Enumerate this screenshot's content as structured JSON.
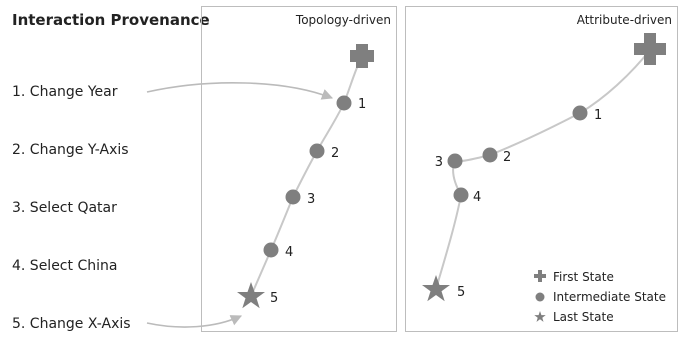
{
  "title": "Interaction Provenance",
  "steps": [
    "1. Change Year",
    "2. Change Y-Axis",
    "3. Select Qatar",
    "4. Select China",
    "5. Change X-Axis"
  ],
  "panels": [
    {
      "title": "Topology-driven",
      "node_labels": [
        "1",
        "2",
        "3",
        "4",
        "5"
      ]
    },
    {
      "title": "Attribute-driven",
      "node_labels": [
        "1",
        "2",
        "3",
        "4",
        "5"
      ]
    }
  ],
  "legend": {
    "first": "First State",
    "intermediate": "Intermediate State",
    "last": "Last State"
  },
  "colors": {
    "node": "#7f7f7f",
    "edge": "#c8c8c8",
    "panel_border": "#bdbdbd",
    "arrow": "#bbbbbb"
  },
  "icons": {
    "first": "plus-icon",
    "intermediate": "circle-icon",
    "last": "star-icon"
  }
}
